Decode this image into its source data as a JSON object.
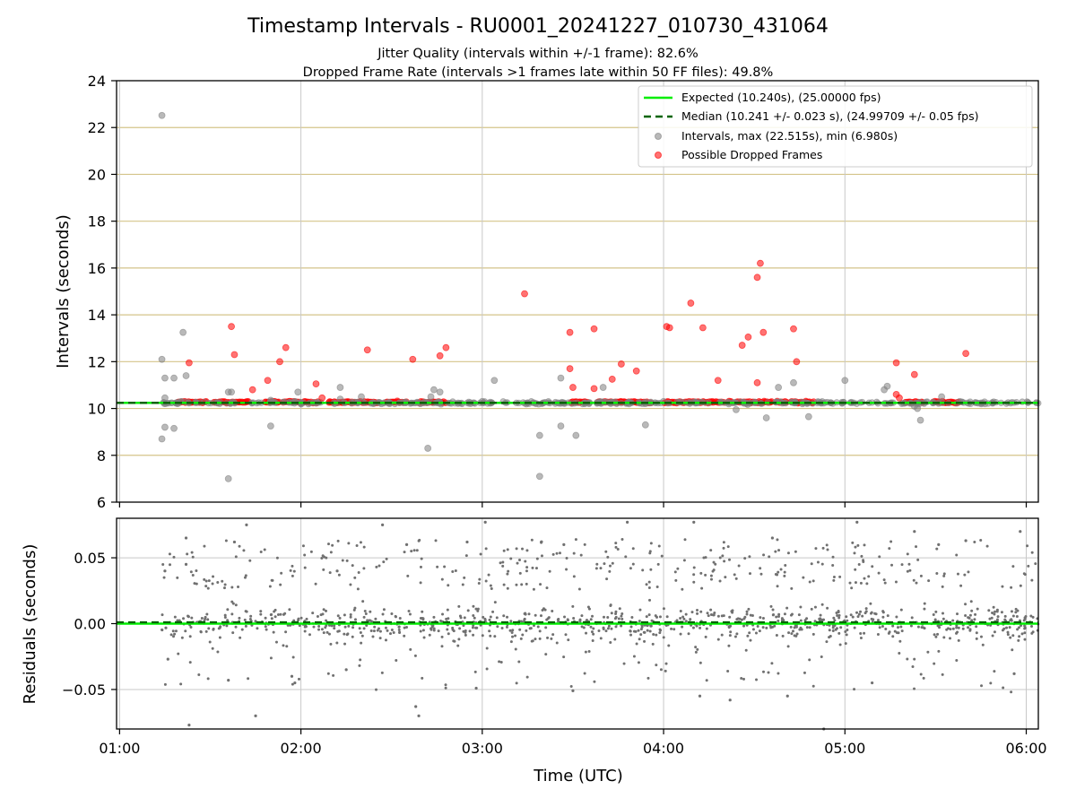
{
  "chart_data": [
    {
      "type": "scatter",
      "title": "Timestamp Intervals - RU0001_20241227_010730_431064",
      "subtitle": [
        "Jitter Quality (intervals within +/-1 frame): 82.6%",
        "Dropped Frame Rate (intervals >1 frames late within 50 FF files): 49.8%"
      ],
      "xlabel": "",
      "ylabel": "Intervals (seconds)",
      "ylim": [
        6,
        24
      ],
      "yticks": [
        6,
        8,
        10,
        12,
        14,
        16,
        18,
        20,
        22,
        24
      ],
      "xlim": [
        "00:59",
        "06:04"
      ],
      "grid": true,
      "legend_position": "top-right",
      "legend": [
        "Expected (10.240s), (25.00000 fps)",
        "Median (10.241 +/- 0.023 s), (24.99709 +/- 0.05 fps)",
        "Intervals, max (22.515s), min (6.980s)",
        "Possible Dropped Frames"
      ],
      "expected_interval": 10.24,
      "median_interval": 10.241,
      "series": [
        {
          "name": "Intervals, max (22.515s), min (6.980s)",
          "color": "#808080",
          "points": [
            [
              "01:14",
              22.515
            ],
            [
              "01:14",
              12.1
            ],
            [
              "01:15",
              11.3
            ],
            [
              "01:14",
              8.7
            ],
            [
              "01:15",
              9.2
            ],
            [
              "01:18",
              9.15
            ],
            [
              "01:18",
              11.3
            ],
            [
              "01:21",
              13.25
            ],
            [
              "01:22",
              11.4
            ],
            [
              "01:15",
              10.45
            ],
            [
              "01:58",
              10.3
            ],
            [
              "01:37",
              10.7
            ],
            [
              "01:36",
              10.7
            ],
            [
              "01:59",
              10.7
            ],
            [
              "01:36",
              7.0
            ],
            [
              "01:50",
              9.25
            ],
            [
              "01:50",
              10.35
            ],
            [
              "02:13",
              10.9
            ],
            [
              "02:13",
              10.4
            ],
            [
              "02:44",
              10.8
            ],
            [
              "02:43",
              10.5
            ],
            [
              "02:46",
              10.7
            ],
            [
              "02:20",
              10.5
            ],
            [
              "02:42",
              8.3
            ],
            [
              "03:04",
              11.2
            ],
            [
              "03:19",
              8.85
            ],
            [
              "03:19",
              7.1
            ],
            [
              "03:26",
              11.3
            ],
            [
              "03:26",
              9.25
            ],
            [
              "03:31",
              8.85
            ],
            [
              "03:40",
              10.9
            ],
            [
              "03:54",
              9.3
            ],
            [
              "04:24",
              9.95
            ],
            [
              "04:34",
              9.6
            ],
            [
              "04:38",
              10.9
            ],
            [
              "04:48",
              9.65
            ],
            [
              "04:43",
              11.1
            ],
            [
              "05:00",
              11.2
            ],
            [
              "05:13",
              10.8
            ],
            [
              "05:14",
              10.95
            ],
            [
              "05:23",
              10.1
            ],
            [
              "05:24",
              10.0
            ],
            [
              "05:25",
              9.5
            ],
            [
              "05:32",
              10.5
            ],
            [
              "05:38",
              10.3
            ],
            [
              "04:00",
              10.3
            ],
            [
              "03:00",
              10.3
            ],
            [
              "02:00",
              10.25
            ]
          ]
        },
        {
          "name": "Possible Dropped Frames",
          "color": "#ff0000",
          "points": [
            [
              "01:37",
              13.5
            ],
            [
              "01:38",
              12.3
            ],
            [
              "01:44",
              10.8
            ],
            [
              "01:49",
              11.2
            ],
            [
              "01:53",
              12.0
            ],
            [
              "01:55",
              12.6
            ],
            [
              "01:23",
              11.95
            ],
            [
              "02:05",
              11.05
            ],
            [
              "02:07",
              10.45
            ],
            [
              "02:22",
              12.5
            ],
            [
              "02:37",
              12.1
            ],
            [
              "02:46",
              12.25
            ],
            [
              "02:48",
              12.6
            ],
            [
              "03:14",
              14.9
            ],
            [
              "03:29",
              13.25
            ],
            [
              "03:29",
              11.7
            ],
            [
              "03:30",
              10.9
            ],
            [
              "03:37",
              13.4
            ],
            [
              "03:37",
              10.85
            ],
            [
              "03:43",
              11.25
            ],
            [
              "03:46",
              11.9
            ],
            [
              "03:51",
              11.6
            ],
            [
              "04:01",
              13.5
            ],
            [
              "04:02",
              13.45
            ],
            [
              "04:09",
              14.5
            ],
            [
              "04:13",
              13.45
            ],
            [
              "04:18",
              11.2
            ],
            [
              "04:26",
              12.7
            ],
            [
              "04:28",
              13.05
            ],
            [
              "04:31",
              15.6
            ],
            [
              "04:32",
              16.2
            ],
            [
              "04:33",
              13.25
            ],
            [
              "04:31",
              11.1
            ],
            [
              "04:43",
              13.4
            ],
            [
              "04:44",
              12.0
            ],
            [
              "05:17",
              11.95
            ],
            [
              "05:17",
              10.6
            ],
            [
              "05:18",
              10.45
            ],
            [
              "05:23",
              11.45
            ],
            [
              "05:40",
              12.35
            ]
          ]
        }
      ],
      "dropped_frame_band": {
        "value": 10.27,
        "segments": [
          [
            "01:19",
            "01:29"
          ],
          [
            "01:31",
            "01:43"
          ],
          [
            "01:48",
            "01:53"
          ],
          [
            "01:54",
            "02:06"
          ],
          [
            "02:09",
            "02:26"
          ],
          [
            "02:28",
            "02:35"
          ],
          [
            "02:39",
            "02:48"
          ],
          [
            "03:29",
            "03:35"
          ],
          [
            "03:38",
            "03:56"
          ],
          [
            "04:00",
            "04:20"
          ],
          [
            "04:21",
            "04:23"
          ],
          [
            "04:24",
            "04:36"
          ],
          [
            "04:37",
            "04:41"
          ],
          [
            "04:42",
            "04:50"
          ],
          [
            "05:20",
            "05:26"
          ],
          [
            "05:29",
            "05:38"
          ]
        ]
      }
    },
    {
      "type": "scatter",
      "title": "",
      "xlabel": "Time (UTC)",
      "ylabel": "Residuals (seconds)",
      "ylim": [
        -0.08,
        0.08
      ],
      "yticks": [
        -0.05,
        0.0,
        0.05
      ],
      "ytick_labels": [
        "−0.05",
        "0.00",
        "0.05"
      ],
      "xlim": [
        "00:59",
        "06:04"
      ],
      "xticks": [
        "01:00",
        "02:00",
        "03:00",
        "04:00",
        "05:00",
        "06:00"
      ],
      "grid": true,
      "expected_residual": 0.0,
      "median_residual": 0.001,
      "series": [
        {
          "name": "",
          "color": "#808080",
          "time_range": [
            "01:14",
            "06:04"
          ],
          "sample_points": [
            [
              "01:15",
              0.04
            ],
            [
              "01:16",
              -0.027
            ],
            [
              "01:22",
              0.045
            ],
            [
              "01:23",
              -0.077
            ],
            [
              "01:22",
              0.065
            ],
            [
              "01:38",
              0.062
            ],
            [
              "01:36",
              -0.043
            ],
            [
              "01:42",
              0.075
            ],
            [
              "01:45",
              -0.07
            ],
            [
              "01:57",
              -0.04
            ],
            [
              "01:58",
              -0.045
            ],
            [
              "02:12",
              0.04
            ],
            [
              "02:15",
              -0.035
            ],
            [
              "02:27",
              0.075
            ],
            [
              "02:35",
              0.06
            ],
            [
              "02:38",
              -0.063
            ],
            [
              "02:39",
              -0.07
            ],
            [
              "02:55",
              0.062
            ],
            [
              "02:58",
              -0.049
            ],
            [
              "03:01",
              0.077
            ],
            [
              "03:30",
              -0.051
            ],
            [
              "03:27",
              0.06
            ],
            [
              "03:48",
              0.077
            ],
            [
              "04:10",
              0.077
            ],
            [
              "04:12",
              -0.055
            ],
            [
              "04:22",
              -0.058
            ],
            [
              "04:36",
              0.065
            ],
            [
              "04:41",
              -0.055
            ],
            [
              "04:53",
              -0.08
            ],
            [
              "05:04",
              0.077
            ],
            [
              "05:09",
              -0.045
            ],
            [
              "05:23",
              0.07
            ],
            [
              "05:31",
              0.06
            ],
            [
              "05:40",
              0.063
            ],
            [
              "05:56",
              -0.038
            ],
            [
              "05:58",
              0.07
            ]
          ]
        }
      ]
    }
  ]
}
